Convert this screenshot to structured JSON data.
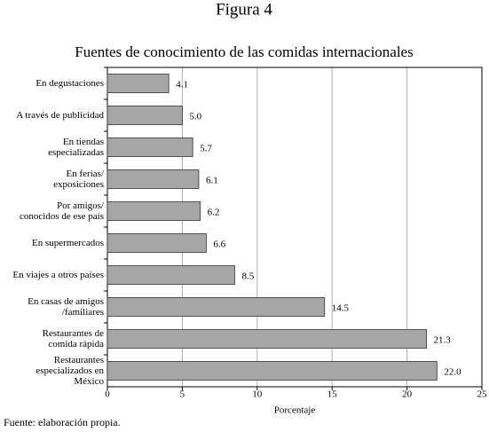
{
  "chart_data": {
    "type": "hbar",
    "figure_label": "Figura 4",
    "title": "Fuentes de conocimiento de  las comidas internacionales",
    "categories": [
      "En degustaciones",
      "A través de publicidad",
      "En tiendas\nespecializadas",
      "En  ferias/\nexposiciones",
      "Por amigos/\nconocidos de ese país",
      "En supermercados",
      "En viajes a otros países",
      "En casas de amigos\n/familiares",
      "Restaurantes de\ncomida rápida",
      "Restaurantes\nespecializados en\nMéxico"
    ],
    "values": [
      4.1,
      5.0,
      5.7,
      6.1,
      6.2,
      6.6,
      8.5,
      14.5,
      21.3,
      22.0
    ],
    "value_labels": [
      "4.1",
      "5.0",
      "5.7",
      "6.1",
      "6.2",
      "6.6",
      "8.5",
      "14.5",
      "21.3",
      "22.0"
    ],
    "color": "#a6a6a6",
    "xlim": [
      0,
      25
    ],
    "xticks": [
      0,
      5,
      10,
      15,
      20,
      25
    ],
    "grid": true,
    "xlabel": "Porcentaje",
    "source": "Fuente: elaboración propia."
  }
}
